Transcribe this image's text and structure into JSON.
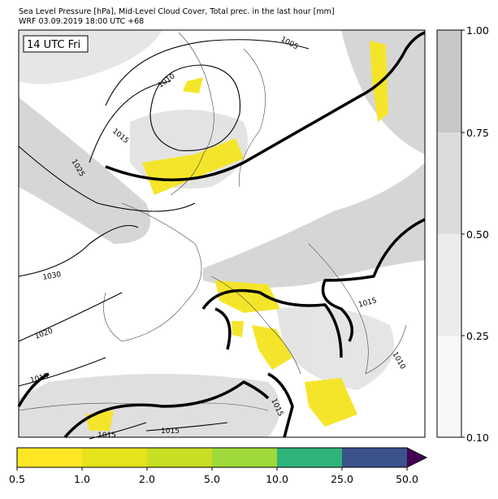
{
  "header": {
    "title": "Sea Level Pressure [hPa], Mid-Level Cloud Cover, Total prec. in the last hour [mm]",
    "subtitle": "WRF 03.09.2019 18:00 UTC +68"
  },
  "map": {
    "time_label": "14 UTC Fri",
    "isobar_labels": [
      "1005",
      "1010",
      "1015",
      "1025",
      "1030",
      "1020",
      "1015",
      "1015",
      "1015",
      "1015",
      "1010",
      "1015"
    ]
  },
  "cloud_colorbar": {
    "ticks": [
      "0.10",
      "0.25",
      "0.50",
      "0.75",
      "1.00"
    ]
  },
  "precip_colorbar": {
    "ticks": [
      "0.5",
      "1.0",
      "2.0",
      "5.0",
      "10.0",
      "25.0",
      "50.0"
    ]
  }
}
